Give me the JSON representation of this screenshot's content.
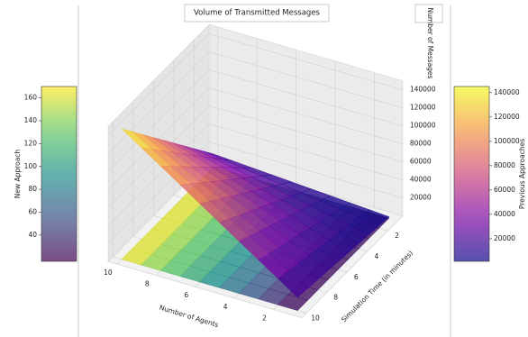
{
  "chart_data": {
    "type": "surface3d",
    "title": "Volume of Transmitted Messages",
    "xlabel": "Number of Agents",
    "ylabel": "Simulation Time (in minutes)",
    "zlabel": "Number of Messages",
    "x": [
      1,
      2,
      3,
      4,
      5,
      6,
      7,
      8,
      9,
      10
    ],
    "y": [
      1,
      2,
      3,
      4,
      5,
      6,
      7,
      8,
      9,
      10
    ],
    "xlim": [
      0.55,
      10.45
    ],
    "ylim": [
      0.55,
      10.45
    ],
    "zlim": [
      0,
      150000
    ],
    "xticks": [
      2,
      4,
      6,
      8,
      10
    ],
    "yticks": [
      2,
      4,
      6,
      8,
      10
    ],
    "zticks": [
      20000,
      40000,
      60000,
      80000,
      100000,
      120000,
      140000
    ],
    "series": [
      {
        "name": "New Approach",
        "colormap": "viridis",
        "clim": [
          17,
          170
        ],
        "cticks": [
          40,
          60,
          80,
          100,
          120,
          140,
          160
        ],
        "values": [
          [
            17,
            34,
            51,
            68,
            85,
            102,
            119,
            136,
            153,
            170
          ],
          [
            17,
            34,
            51,
            68,
            85,
            102,
            119,
            136,
            153,
            170
          ],
          [
            17,
            34,
            51,
            68,
            85,
            102,
            119,
            136,
            153,
            170
          ],
          [
            17,
            34,
            51,
            68,
            85,
            102,
            119,
            136,
            153,
            170
          ],
          [
            17,
            34,
            51,
            68,
            85,
            102,
            119,
            136,
            153,
            170
          ],
          [
            17,
            34,
            51,
            68,
            85,
            102,
            119,
            136,
            153,
            170
          ],
          [
            17,
            34,
            51,
            68,
            85,
            102,
            119,
            136,
            153,
            170
          ],
          [
            17,
            34,
            51,
            68,
            85,
            102,
            119,
            136,
            153,
            170
          ],
          [
            17,
            34,
            51,
            68,
            85,
            102,
            119,
            136,
            153,
            170
          ],
          [
            17,
            34,
            51,
            68,
            85,
            102,
            119,
            136,
            153,
            170
          ]
        ]
      },
      {
        "name": "Previous Approaches",
        "colormap": "plasma",
        "clim": [
          1450,
          145000
        ],
        "cticks": [
          20000,
          40000,
          60000,
          80000,
          100000,
          120000,
          140000
        ],
        "values": [
          [
            1450,
            2900,
            4350,
            5800,
            7250,
            8700,
            10150,
            11600,
            13050,
            14500
          ],
          [
            2900,
            5800,
            8700,
            11600,
            14500,
            17400,
            20300,
            23200,
            26100,
            29000
          ],
          [
            4350,
            8700,
            13050,
            17400,
            21750,
            26100,
            30450,
            34800,
            39150,
            43500
          ],
          [
            5800,
            11600,
            17400,
            23200,
            29000,
            34800,
            40600,
            46400,
            52200,
            58000
          ],
          [
            7250,
            14500,
            21750,
            29000,
            36250,
            43500,
            50750,
            58000,
            65250,
            72500
          ],
          [
            8700,
            17400,
            26100,
            34800,
            43500,
            52200,
            60900,
            69600,
            78300,
            87000
          ],
          [
            10150,
            20300,
            30450,
            40600,
            50750,
            60900,
            71050,
            81200,
            91350,
            101500
          ],
          [
            11600,
            23200,
            34800,
            46400,
            58000,
            69600,
            81200,
            92800,
            104400,
            116000
          ],
          [
            13050,
            26100,
            39150,
            52200,
            65250,
            78300,
            91350,
            104400,
            117450,
            130500
          ],
          [
            14500,
            29000,
            43500,
            58000,
            72500,
            87000,
            101500,
            116000,
            130500,
            145000
          ]
        ]
      }
    ]
  }
}
